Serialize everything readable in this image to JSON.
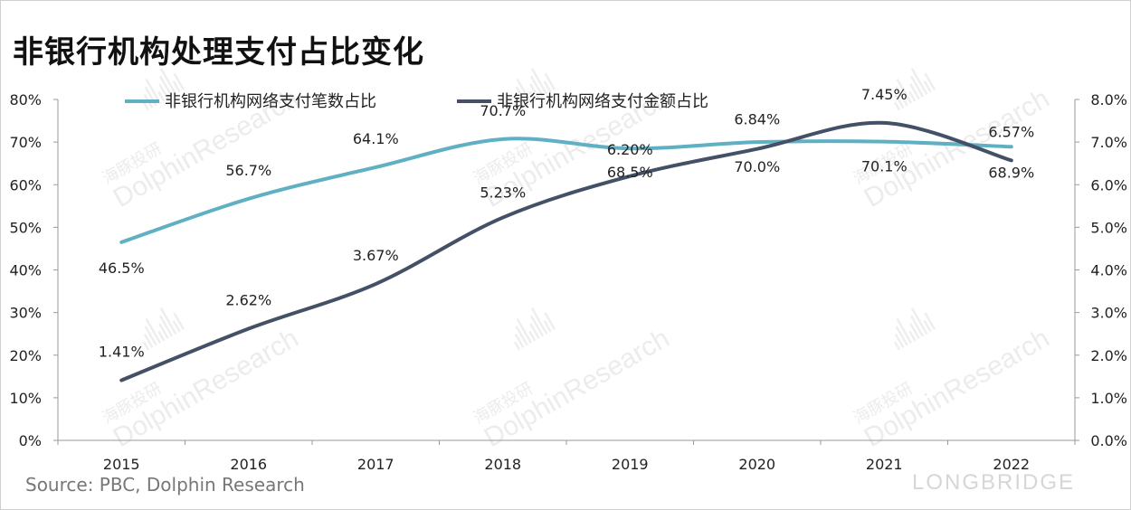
{
  "title": "非银行机构处理支付占比变化",
  "source": "Source: PBC,  Dolphin Research",
  "brand": "LONGBRIDGE",
  "watermark": {
    "cn": "海豚投研",
    "en": "DolphinResearch"
  },
  "chart_data": {
    "type": "line",
    "categories": [
      "2015",
      "2016",
      "2017",
      "2018",
      "2019",
      "2020",
      "2021",
      "2022"
    ],
    "left_axis": {
      "ticks": [
        "0%",
        "10%",
        "20%",
        "30%",
        "40%",
        "50%",
        "60%",
        "70%",
        "80%"
      ],
      "ylim": [
        0,
        80
      ]
    },
    "right_axis": {
      "ticks": [
        "0.0%",
        "1.0%",
        "2.0%",
        "3.0%",
        "4.0%",
        "5.0%",
        "6.0%",
        "7.0%",
        "8.0%"
      ],
      "ylim": [
        0,
        8
      ]
    },
    "grid": false,
    "legend_position": "top",
    "series": [
      {
        "name": "非银行机构网络支付笔数占比",
        "axis": "left",
        "color": "#5fb0c2",
        "values": [
          46.5,
          56.7,
          64.1,
          70.7,
          68.5,
          70.0,
          70.1,
          68.9
        ],
        "labels": [
          "46.5%",
          "56.7%",
          "64.1%",
          "70.7%",
          "68.5%",
          "70.0%",
          "70.1%",
          "68.9%"
        ]
      },
      {
        "name": "非银行机构网络支付金额占比",
        "axis": "right",
        "color": "#445066",
        "values": [
          1.41,
          2.62,
          3.67,
          5.23,
          6.2,
          6.84,
          7.45,
          6.57
        ],
        "labels": [
          "1.41%",
          "2.62%",
          "3.67%",
          "5.23%",
          "6.20%",
          "6.84%",
          "7.45%",
          "6.57%"
        ]
      }
    ]
  }
}
